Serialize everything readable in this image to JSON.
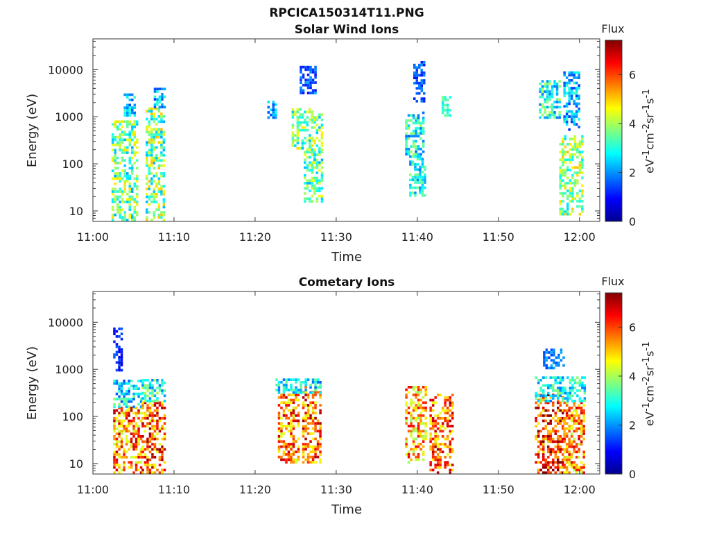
{
  "figure": {
    "title": "RPCICA150314T11.PNG"
  },
  "chart_data": [
    {
      "type": "heatmap",
      "title": "Solar Wind Ions",
      "xlabel": "Time",
      "ylabel": "Energy (eV)",
      "x_ticks": [
        "11:00",
        "11:10",
        "11:20",
        "11:30",
        "11:40",
        "11:50",
        "12:00"
      ],
      "xlim_minutes": [
        0,
        62.5
      ],
      "y_scale": "log",
      "y_ticks": [
        "10",
        "100",
        "1000",
        "10000"
      ],
      "ylim": [
        6,
        45000
      ],
      "colorbar": {
        "title": "Flux",
        "label_html": "eV<sup>-1</sup>cm<sup>-2</sup>sr<sup>-1</sup>s<sup>-1</sup>",
        "ticks": [
          "0",
          "2",
          "4",
          "6"
        ],
        "range": [
          0,
          7.4
        ],
        "colormap": "jet"
      },
      "blobs": [
        {
          "t": [
            2.3,
            5.5
          ],
          "e": [
            6,
            800
          ],
          "f": 3.5,
          "spread": 1.4
        },
        {
          "t": [
            3.8,
            5.0
          ],
          "e": [
            1000,
            3000
          ],
          "f": 2.4,
          "spread": 1.0
        },
        {
          "t": [
            6.5,
            8.8
          ],
          "e": [
            6,
            1500
          ],
          "f": 3.7,
          "spread": 1.5
        },
        {
          "t": [
            7.5,
            8.8
          ],
          "e": [
            1500,
            4000
          ],
          "f": 2.2,
          "spread": 0.9
        },
        {
          "t": [
            21.5,
            22.5
          ],
          "e": [
            900,
            2000
          ],
          "f": 2.2,
          "spread": 0.8
        },
        {
          "t": [
            24.5,
            28.2
          ],
          "e": [
            200,
            1500
          ],
          "f": 3.6,
          "spread": 1.3
        },
        {
          "t": [
            26.0,
            28.2
          ],
          "e": [
            15,
            200
          ],
          "f": 3.4,
          "spread": 1.2
        },
        {
          "t": [
            25.5,
            27.5
          ],
          "e": [
            3000,
            12000
          ],
          "f": 1.6,
          "spread": 0.6
        },
        {
          "t": [
            38.5,
            40.8
          ],
          "e": [
            150,
            1200
          ],
          "f": 2.8,
          "spread": 1.2
        },
        {
          "t": [
            39.0,
            41.0
          ],
          "e": [
            20,
            150
          ],
          "f": 2.8,
          "spread": 1.0
        },
        {
          "t": [
            39.5,
            40.8
          ],
          "e": [
            2000,
            14000
          ],
          "f": 1.5,
          "spread": 0.5
        },
        {
          "t": [
            43.0,
            44.0
          ],
          "e": [
            1000,
            2500
          ],
          "f": 3.2,
          "spread": 0.6
        },
        {
          "t": [
            55.0,
            57.5
          ],
          "e": [
            900,
            6000
          ],
          "f": 3.0,
          "spread": 1.2
        },
        {
          "t": [
            57.5,
            60.2
          ],
          "e": [
            8,
            400
          ],
          "f": 3.8,
          "spread": 1.3
        },
        {
          "t": [
            58.0,
            60.0
          ],
          "e": [
            500,
            9000
          ],
          "f": 2.2,
          "spread": 1.0
        }
      ]
    },
    {
      "type": "heatmap",
      "title": "Cometary Ions",
      "xlabel": "Time",
      "ylabel": "Energy (eV)",
      "x_ticks": [
        "11:00",
        "11:10",
        "11:20",
        "11:30",
        "11:40",
        "11:50",
        "12:00"
      ],
      "xlim_minutes": [
        0,
        62.5
      ],
      "y_scale": "log",
      "y_ticks": [
        "10",
        "100",
        "1000",
        "10000"
      ],
      "ylim": [
        6,
        45000
      ],
      "colorbar": {
        "title": "Flux",
        "label_html": "eV<sup>-1</sup>cm<sup>-2</sup>sr<sup>-1</sup>s<sup>-1</sup>",
        "ticks": [
          "0",
          "2",
          "4",
          "6"
        ],
        "range": [
          0,
          7.4
        ],
        "colormap": "jet"
      },
      "blobs": [
        {
          "t": [
            2.5,
            5.8
          ],
          "e": [
            6,
            150
          ],
          "f": 5.6,
          "spread": 1.5
        },
        {
          "t": [
            2.5,
            5.8
          ],
          "e": [
            150,
            600
          ],
          "f": 2.6,
          "spread": 1.2
        },
        {
          "t": [
            2.5,
            3.6
          ],
          "e": [
            900,
            7000
          ],
          "f": 1.2,
          "spread": 0.6
        },
        {
          "t": [
            6.0,
            8.8
          ],
          "e": [
            6,
            200
          ],
          "f": 5.8,
          "spread": 1.5
        },
        {
          "t": [
            6.0,
            8.8
          ],
          "e": [
            200,
            600
          ],
          "f": 3.0,
          "spread": 1.2
        },
        {
          "t": [
            22.8,
            25.5
          ],
          "e": [
            10,
            300
          ],
          "f": 5.6,
          "spread": 1.4
        },
        {
          "t": [
            25.8,
            28.2
          ],
          "e": [
            10,
            400
          ],
          "f": 5.8,
          "spread": 1.4
        },
        {
          "t": [
            22.5,
            28.2
          ],
          "e": [
            300,
            600
          ],
          "f": 2.6,
          "spread": 1.0
        },
        {
          "t": [
            38.5,
            41.0
          ],
          "e": [
            10,
            400
          ],
          "f": 5.2,
          "spread": 1.5
        },
        {
          "t": [
            41.5,
            44.2
          ],
          "e": [
            6,
            300
          ],
          "f": 5.8,
          "spread": 1.4
        },
        {
          "t": [
            54.5,
            58.0
          ],
          "e": [
            6,
            300
          ],
          "f": 6.2,
          "spread": 1.4
        },
        {
          "t": [
            58.0,
            60.5
          ],
          "e": [
            6,
            200
          ],
          "f": 5.4,
          "spread": 1.4
        },
        {
          "t": [
            54.5,
            60.5
          ],
          "e": [
            200,
            700
          ],
          "f": 2.8,
          "spread": 1.0
        },
        {
          "t": [
            55.5,
            58.0
          ],
          "e": [
            1000,
            2500
          ],
          "f": 1.8,
          "spread": 0.5
        }
      ]
    }
  ]
}
